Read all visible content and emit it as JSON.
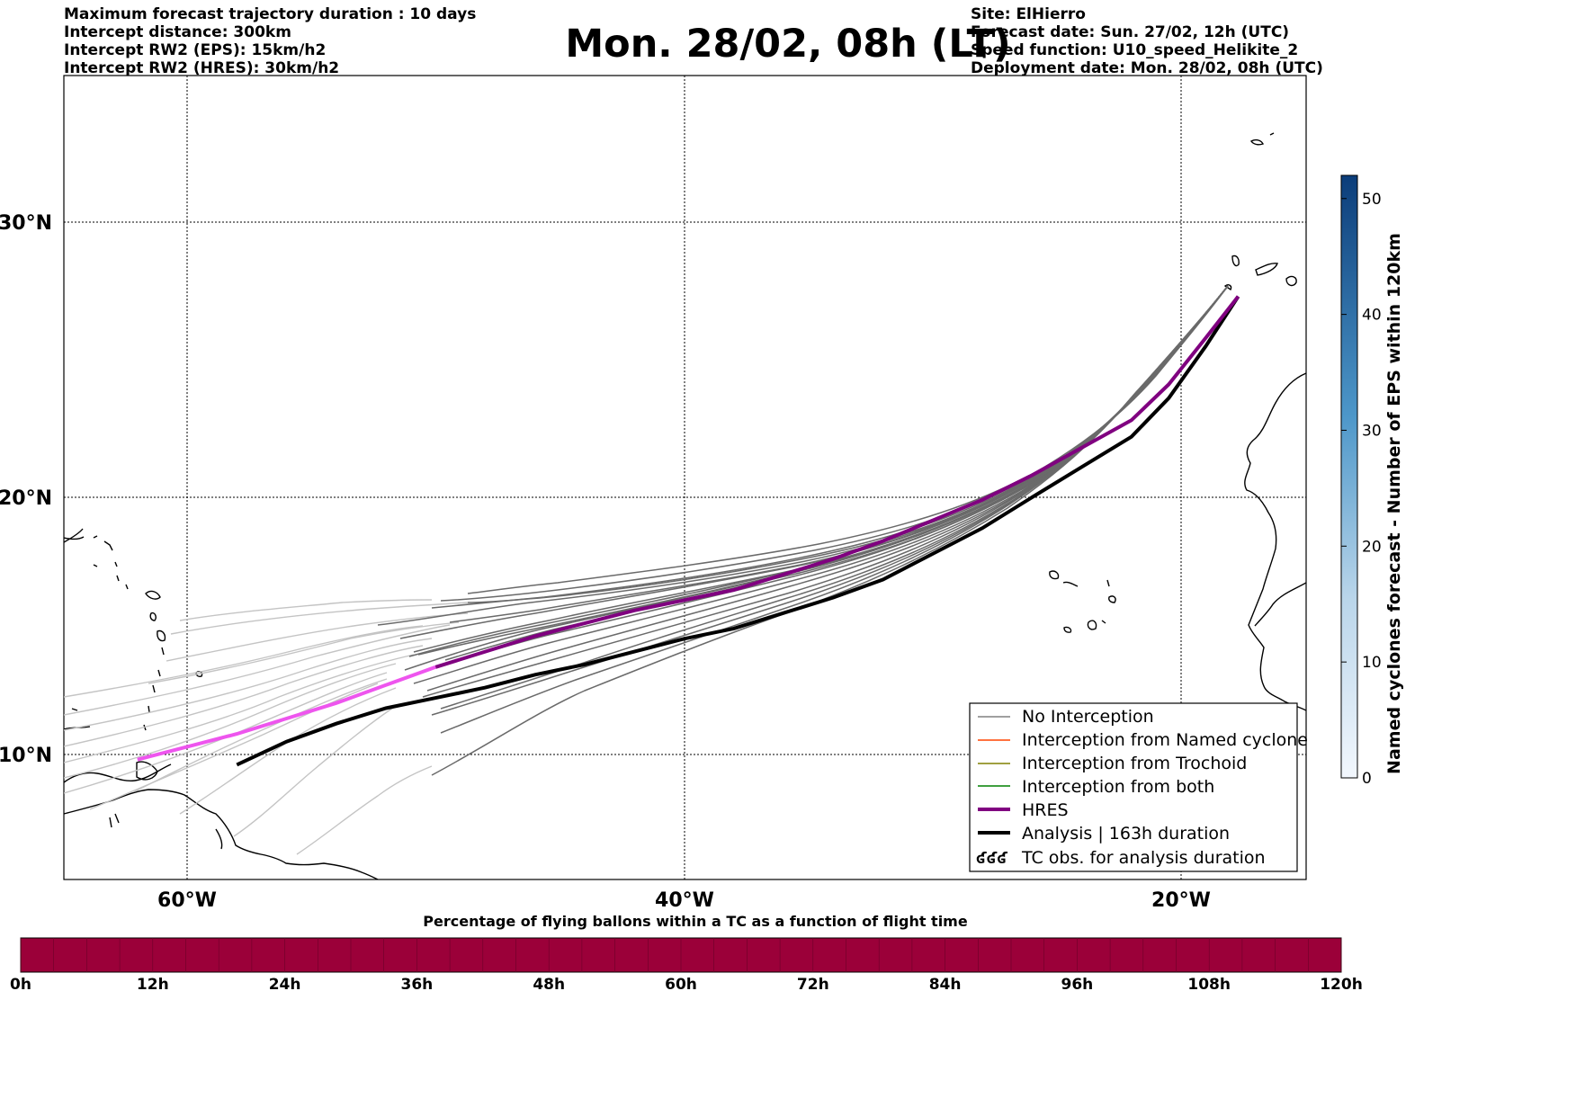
{
  "title": "Mon. 28/02, 08h (LT)",
  "header_left": [
    "Maximum forecast trajectory duration : 10 days",
    "Intercept distance: 300km",
    "Intercept RW2 (EPS):  15km/h2",
    "Intercept RW2 (HRES): 30km/h2"
  ],
  "header_right": [
    "Site: ElHierro",
    "Forecast date: Sun. 27/02, 12h (UTC)",
    "Speed function: U10_speed_Helikite_2",
    "Deployment date: Mon. 28/02, 08h (UTC)"
  ],
  "map": {
    "lat_labels": [
      "30°N",
      "20°N",
      "10°N"
    ],
    "lon_labels": [
      "60°W",
      "40°W",
      "20°W"
    ]
  },
  "legend": {
    "items": [
      {
        "label": "No Interception",
        "color": "#808080"
      },
      {
        "label": "Interception from Named cyclone",
        "color": "#ff4500"
      },
      {
        "label": "Interception from Trochoid",
        "color": "#808000"
      },
      {
        "label": "Interception from both",
        "color": "#008000"
      },
      {
        "label": "HRES",
        "color": "#800080"
      },
      {
        "label": "Analysis | 163h duration",
        "color": "#000000"
      },
      {
        "label": "TC obs. for analysis duration",
        "symbol": "ʛʛʛ"
      }
    ]
  },
  "colorbar": {
    "label": "Named cyclones forecast - Number of EPS within 120km",
    "ticks": [
      "0",
      "10",
      "20",
      "30",
      "40",
      "50"
    ],
    "vmin": 0,
    "vmax": 52
  },
  "timebar": {
    "title": "Percentage of flying ballons within a TC as a function of flight time",
    "ticks": [
      "0h",
      "12h",
      "24h",
      "36h",
      "48h",
      "60h",
      "72h",
      "84h",
      "96h",
      "108h",
      "120h"
    ],
    "fill_color": "#9b0039"
  },
  "chart_data": {
    "type": "line",
    "title": "Mon. 28/02, 08h (LT)",
    "x_axis": "longitude",
    "y_axis": "latitude",
    "xlim": [
      -65,
      -15
    ],
    "ylim": [
      5.3,
      35.3
    ],
    "series": [
      {
        "name": "HRES",
        "x": [
          -17.7,
          -19,
          -20.5,
          -22,
          -24,
          -26,
          -28,
          -30,
          -32,
          -34,
          -36,
          -38,
          -40,
          -42,
          -44,
          -46,
          -48,
          -50,
          -52,
          -54,
          -56,
          -58,
          -60,
          -62
        ],
        "y": [
          27.3,
          25.8,
          24.1,
          22.8,
          21.8,
          20.8,
          19.9,
          19.1,
          18.3,
          17.6,
          17.0,
          16.4,
          16.0,
          15.6,
          15.1,
          14.6,
          14.0,
          13.4,
          12.7,
          12.0,
          11.4,
          10.8,
          10.3,
          9.8
        ]
      },
      {
        "name": "Analysis | 163h duration",
        "x": [
          -17.7,
          -19,
          -20.5,
          -22,
          -24,
          -26,
          -28,
          -30,
          -32,
          -34,
          -36,
          -38,
          -40,
          -42,
          -44,
          -46,
          -48,
          -50,
          -52,
          -54,
          -56,
          -58
        ],
        "y": [
          27.3,
          25.5,
          23.6,
          22.2,
          21.1,
          20.0,
          18.8,
          17.8,
          16.8,
          16.1,
          15.5,
          14.9,
          14.5,
          14.0,
          13.5,
          13.1,
          12.6,
          12.2,
          11.8,
          11.2,
          10.5,
          9.6
        ]
      }
    ]
  }
}
